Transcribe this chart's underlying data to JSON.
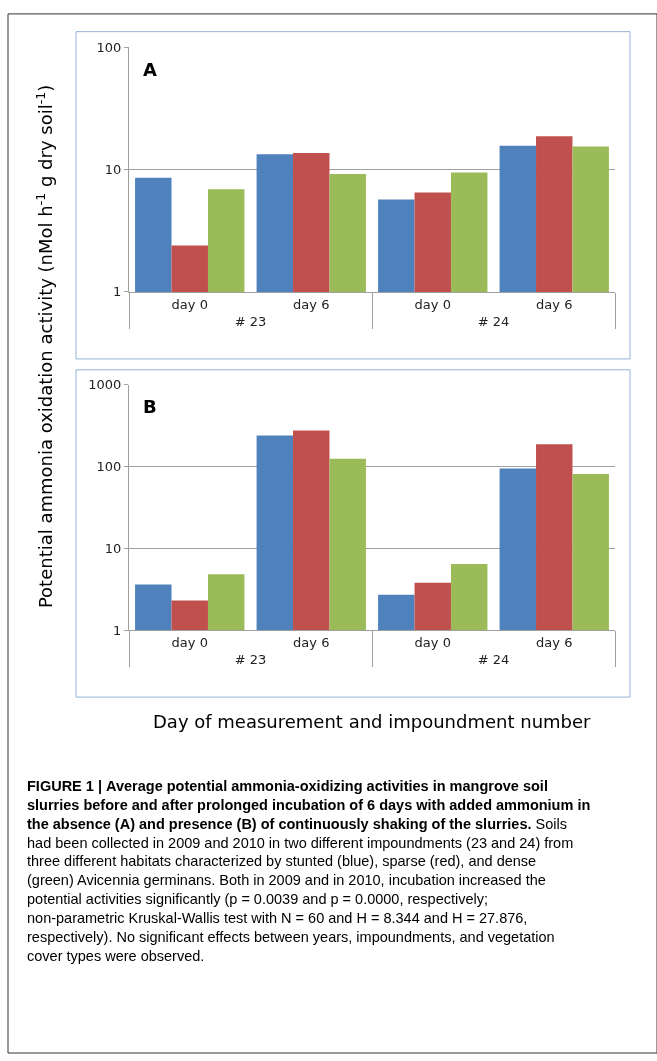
{
  "chart_data": [
    {
      "type": "bar",
      "title": "A",
      "ylabel": "Potential ammonia oxidation activity (nMol h$^{-1}$ g dry soil$^{-1}$)",
      "categories": [
        "day 0",
        "day 6",
        "day 0",
        "day 6"
      ],
      "annotations": [
        "# 23",
        "# 24"
      ],
      "log": true,
      "ylim": [
        1,
        100
      ],
      "yticks": [
        1,
        10,
        100
      ],
      "grid": "y",
      "series": [
        {
          "color": "#4f81bd",
          "values": [
            8.6,
            13.4,
            5.7,
            15.7
          ]
        },
        {
          "color": "#c0504d",
          "values": [
            2.4,
            13.7,
            6.5,
            18.8
          ]
        },
        {
          "color": "#9bbb59",
          "values": [
            6.9,
            9.2,
            9.5,
            15.5
          ]
        }
      ]
    },
    {
      "type": "bar",
      "title": "B",
      "xlabel": "Day of measurement and impoundment number",
      "categories": [
        "day 0",
        "day 6",
        "day 0",
        "day 6"
      ],
      "annotations": [
        "# 23",
        "# 24"
      ],
      "log": true,
      "ylim": [
        1,
        1000
      ],
      "yticks": [
        1,
        10,
        100,
        1000
      ],
      "grid": "y",
      "series": [
        {
          "color": "#4f81bd",
          "values": [
            3.6,
            238,
            2.7,
            94
          ]
        },
        {
          "color": "#c0504d",
          "values": [
            2.3,
            274,
            3.8,
            187
          ]
        },
        {
          "color": "#9bbb59",
          "values": [
            4.8,
            124,
            6.4,
            81
          ]
        }
      ]
    },
    {
      "type": "other",
      "title": "FIGURE 1 | Average potential ammonia-oxidizing activities in mangrove soil slurries before and after prolonged incubation of 6 days with added ammonium in the absence (A) and presence (B) of continuously shaking of the slurries.",
      "annotations": [
        "Soils had been collected in 2009 and 2010 in two different impoundments (23 and 24) from three different habitats characterized by stunted (blue), sparse (red), and dense (green) Avicennia germinans. Both in 2009 and in 2010, incubation increased the potential activities significantly (p = 0.0039 and p = 0.0000, respectively; non-parametric Kruskal-Wallis test with N = 60 and H = 8.344 and H = 27.876, respectively). No significant effects between years, impoundments, and vegetation cover types were observed."
      ]
    }
  ]
}
